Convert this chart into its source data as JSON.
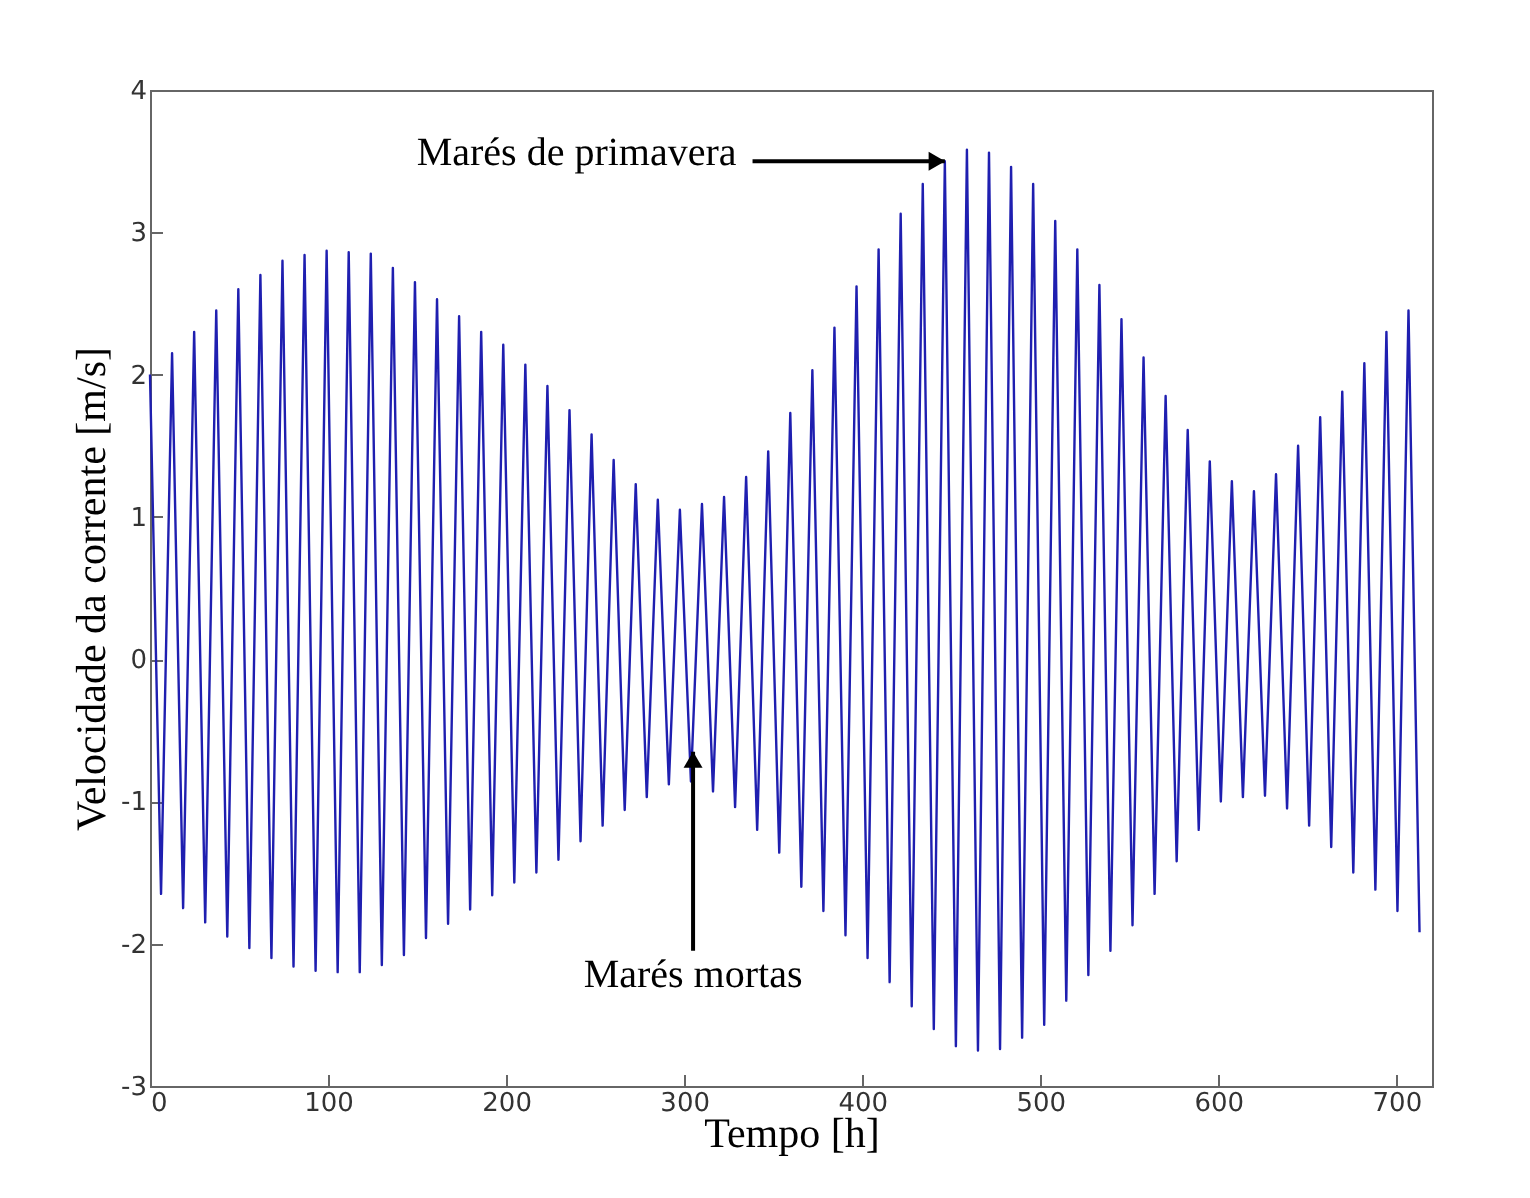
{
  "chart_data": {
    "type": "line",
    "xlabel": "Tempo [h]",
    "ylabel": "Velocidade da corrente [m/s]",
    "xlim": [
      0,
      720
    ],
    "xticks": [
      0,
      100,
      200,
      300,
      400,
      500,
      600,
      700
    ],
    "ylim": [
      -3,
      4
    ],
    "yticks": [
      -3,
      -2,
      -1,
      0,
      1,
      2,
      3,
      4
    ],
    "grid": false,
    "legend": false,
    "annotations": [
      {
        "text": "Marés de primavera",
        "x": 446.4,
        "y": 3.5
      },
      {
        "text": "Marés mortas",
        "x": 305,
        "y": -0.65
      }
    ],
    "series": [
      {
        "color": "#1f1fb0",
        "x": [
          0,
          6.2,
          12.4,
          18.6,
          24.8,
          31,
          37.2,
          43.4,
          49.6,
          55.8,
          62,
          68.2,
          74.4,
          80.6,
          86.8,
          93,
          99.2,
          105.4,
          111.6,
          117.8,
          124,
          130.2,
          136.4,
          142.6,
          148.8,
          155,
          161.2,
          167.4,
          173.6,
          179.8,
          186,
          192.2,
          198.4,
          204.6,
          210.8,
          217,
          223.2,
          229.4,
          235.6,
          241.8,
          248,
          254.2,
          260.4,
          266.6,
          272.8,
          279,
          285.2,
          291.4,
          297.6,
          303.8,
          310,
          316.2,
          322.4,
          328.6,
          334.8,
          341,
          347.2,
          353.4,
          359.6,
          365.8,
          372,
          378.2,
          384.4,
          390.6,
          396.8,
          403,
          409.2,
          415.4,
          421.6,
          427.8,
          434,
          440.2,
          446.4,
          452.6,
          458.8,
          465,
          471.2,
          477.4,
          483.6,
          489.8,
          496,
          502.2,
          508.4,
          514.6,
          520.8,
          527,
          533.2,
          539.4,
          545.6,
          551.8,
          558,
          564.2,
          570.4,
          576.6,
          582.8,
          589,
          595.2,
          601.4,
          607.6,
          613.8,
          620,
          626.2,
          632.4,
          638.6,
          644.8,
          651,
          657.2,
          663.4,
          669.6,
          675.8,
          682,
          688.2,
          694.4,
          700.6,
          706.8,
          713
        ],
        "values": [
          2.0,
          -1.65,
          2.15,
          -1.75,
          2.3,
          -1.85,
          2.45,
          -1.95,
          2.6,
          -2.03,
          2.7,
          -2.1,
          2.8,
          -2.16,
          2.84,
          -2.19,
          2.87,
          -2.2,
          2.86,
          -2.2,
          2.85,
          -2.15,
          2.75,
          -2.08,
          2.65,
          -1.96,
          2.53,
          -1.86,
          2.41,
          -1.76,
          2.3,
          -1.66,
          2.21,
          -1.57,
          2.07,
          -1.5,
          1.92,
          -1.41,
          1.75,
          -1.28,
          1.58,
          -1.17,
          1.4,
          -1.06,
          1.23,
          -0.97,
          1.12,
          -0.88,
          1.05,
          -0.86,
          1.09,
          -0.93,
          1.14,
          -1.04,
          1.28,
          -1.2,
          1.46,
          -1.36,
          1.73,
          -1.6,
          2.03,
          -1.77,
          2.33,
          -1.94,
          2.62,
          -2.1,
          2.88,
          -2.27,
          3.13,
          -2.44,
          3.34,
          -2.6,
          3.5,
          -2.72,
          3.58,
          -2.75,
          3.56,
          -2.74,
          3.46,
          -2.66,
          3.34,
          -2.57,
          3.08,
          -2.4,
          2.88,
          -2.22,
          2.63,
          -2.05,
          2.39,
          -1.87,
          2.12,
          -1.65,
          1.85,
          -1.42,
          1.61,
          -1.2,
          1.39,
          -1.0,
          1.25,
          -0.97,
          1.18,
          -0.96,
          1.3,
          -1.05,
          1.5,
          -1.17,
          1.7,
          -1.32,
          1.88,
          -1.5,
          2.08,
          -1.62,
          2.3,
          -1.77,
          2.45,
          -1.92
        ]
      }
    ]
  }
}
